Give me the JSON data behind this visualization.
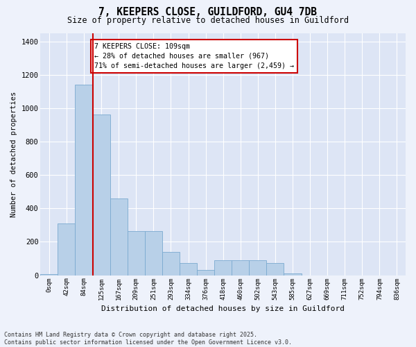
{
  "title_line1": "7, KEEPERS CLOSE, GUILDFORD, GU4 7DB",
  "title_line2": "Size of property relative to detached houses in Guildford",
  "xlabel": "Distribution of detached houses by size in Guildford",
  "ylabel": "Number of detached properties",
  "categories": [
    "0sqm",
    "42sqm",
    "84sqm",
    "125sqm",
    "167sqm",
    "209sqm",
    "251sqm",
    "293sqm",
    "334sqm",
    "376sqm",
    "418sqm",
    "460sqm",
    "502sqm",
    "543sqm",
    "585sqm",
    "627sqm",
    "669sqm",
    "711sqm",
    "752sqm",
    "794sqm",
    "836sqm"
  ],
  "values": [
    5,
    310,
    1140,
    960,
    460,
    265,
    265,
    140,
    75,
    30,
    90,
    90,
    90,
    75,
    10,
    0,
    0,
    0,
    0,
    0,
    0
  ],
  "bar_color": "#b8d0e8",
  "bar_edge_color": "#7aaad0",
  "vline_color": "#cc0000",
  "annotation_text": "7 KEEPERS CLOSE: 109sqm\n← 28% of detached houses are smaller (967)\n71% of semi-detached houses are larger (2,459) →",
  "annotation_box_color": "#ffffff",
  "annotation_box_edge_color": "#cc0000",
  "ylim": [
    0,
    1450
  ],
  "yticks": [
    0,
    200,
    400,
    600,
    800,
    1000,
    1200,
    1400
  ],
  "footer_line1": "Contains HM Land Registry data © Crown copyright and database right 2025.",
  "footer_line2": "Contains public sector information licensed under the Open Government Licence v3.0.",
  "bg_color": "#eef2fb",
  "plot_bg_color": "#dde5f5",
  "fig_width": 6.0,
  "fig_height": 5.0,
  "vline_pos": 2.5
}
